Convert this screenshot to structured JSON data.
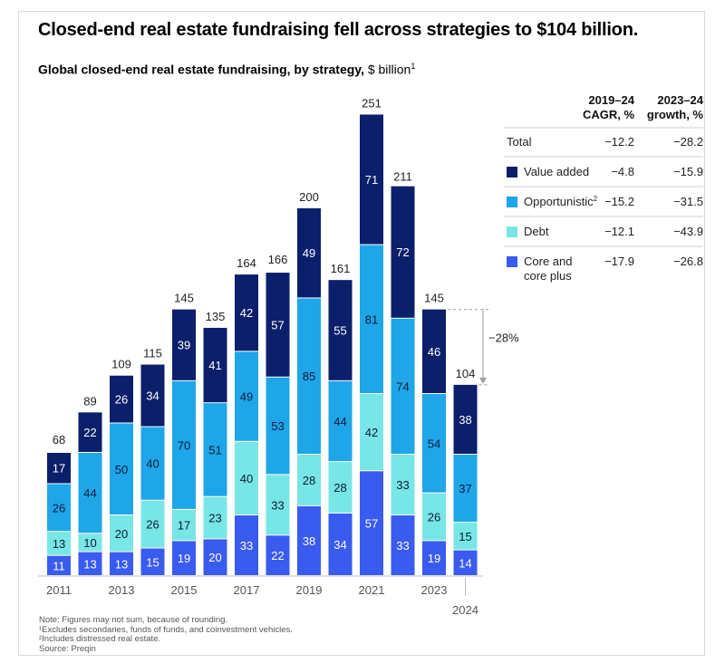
{
  "title": "Closed-end real estate fundraising fell across strategies to $104 billion.",
  "subtitle": {
    "bold": "Global closed-end real estate fundraising, by strategy,",
    "unit": "$ billion",
    "footnote_mark": "1"
  },
  "chart_data": {
    "type": "bar",
    "stacked": true,
    "categories": [
      "2011",
      "2012",
      "2013",
      "2014",
      "2015",
      "2016",
      "2017",
      "2018",
      "2019",
      "2020",
      "2021",
      "2022",
      "2023",
      "2024"
    ],
    "tick_labels": [
      "2011",
      "",
      "2013",
      "",
      "2015",
      "",
      "2017",
      "",
      "2019",
      "",
      "2021",
      "",
      "2023",
      "2024"
    ],
    "series": [
      {
        "name": "Core and core plus",
        "color": "#3a5bef",
        "values": [
          11,
          13,
          13,
          15,
          19,
          20,
          33,
          22,
          38,
          34,
          57,
          33,
          19,
          14
        ]
      },
      {
        "name": "Debt",
        "color": "#78e6e6",
        "values": [
          13,
          10,
          20,
          26,
          17,
          23,
          40,
          33,
          28,
          28,
          42,
          33,
          26,
          15
        ]
      },
      {
        "name": "Opportunistic",
        "footnote_mark": "2",
        "color": "#1ea6e8",
        "values": [
          26,
          44,
          50,
          40,
          70,
          51,
          49,
          53,
          85,
          44,
          81,
          74,
          54,
          37
        ]
      },
      {
        "name": "Value added",
        "color": "#0b1f6b",
        "values": [
          17,
          22,
          26,
          34,
          39,
          41,
          42,
          57,
          49,
          55,
          71,
          72,
          46,
          38
        ]
      }
    ],
    "totals": [
      68,
      89,
      109,
      115,
      145,
      135,
      164,
      166,
      200,
      161,
      251,
      211,
      145,
      104
    ],
    "ylim": [
      0,
      260
    ],
    "annotation": {
      "text": "−28%",
      "from": "2023",
      "to": "2024"
    }
  },
  "table": {
    "headers": [
      {
        "line1": "2019–24",
        "line2": "CAGR, %"
      },
      {
        "line1": "2023–24",
        "line2": "growth, %"
      }
    ],
    "rows": [
      {
        "label": "Total",
        "swatch": "",
        "cagr": "−12.2",
        "growth": "−28.2"
      },
      {
        "label": "Value added",
        "swatch": "#0b1f6b",
        "cagr": "−4.8",
        "growth": "−15.9"
      },
      {
        "label": "Opportunistic",
        "sup": "2",
        "swatch": "#1ea6e8",
        "cagr": "−15.2",
        "growth": "−31.5"
      },
      {
        "label": "Debt",
        "swatch": "#78e6e6",
        "cagr": "−12.1",
        "growth": "−43.9"
      },
      {
        "label": "Core and",
        "label2": "core plus",
        "swatch": "#3a5bef",
        "cagr": "−17.9",
        "growth": "−26.8"
      }
    ]
  },
  "notes": {
    "note": "Note: Figures may not sum, because of rounding.",
    "fn1": "¹Excludes secondaries, funds of funds, and coinvestment vehicles.",
    "fn2": "²Includes distressed real estate.",
    "source": "Source: Preqin"
  }
}
